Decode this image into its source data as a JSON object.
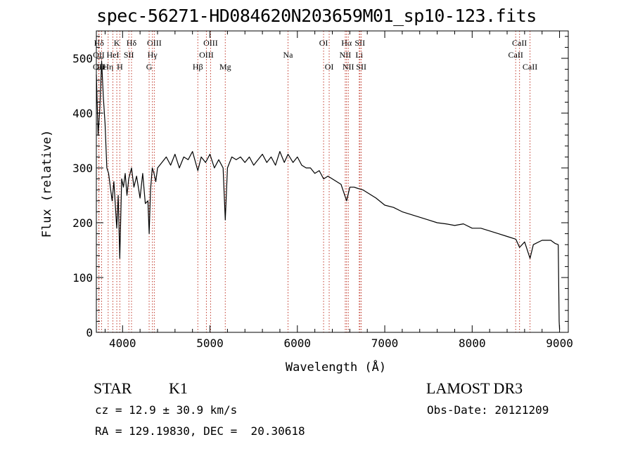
{
  "chart_data": {
    "type": "line",
    "title": "spec-56271-HD084620N203659M01_sp10-123.fits",
    "xlabel": "Wavelength (Å)",
    "ylabel": "Flux (relative)",
    "xlim": [
      3700,
      9100
    ],
    "ylim": [
      0,
      550
    ],
    "xticks": [
      4000,
      5000,
      6000,
      7000,
      8000,
      9000
    ],
    "xtick_labels": [
      "4000",
      "5000",
      "6000",
      "7000",
      "8000",
      "9000"
    ],
    "yticks": [
      0,
      100,
      200,
      300,
      400,
      500
    ],
    "ytick_labels": [
      "0",
      "100",
      "200",
      "300",
      "400",
      "500"
    ],
    "series": [
      {
        "name": "spectrum",
        "x": [
          3700,
          3720,
          3740,
          3760,
          3780,
          3800,
          3820,
          3840,
          3860,
          3880,
          3900,
          3920,
          3933,
          3950,
          3968,
          3990,
          4010,
          4030,
          4050,
          4070,
          4102,
          4130,
          4160,
          4200,
          4230,
          4260,
          4290,
          4304,
          4320,
          4340,
          4360,
          4380,
          4400,
          4450,
          4500,
          4550,
          4600,
          4650,
          4700,
          4750,
          4800,
          4861,
          4900,
          4950,
          5000,
          5050,
          5100,
          5150,
          5175,
          5200,
          5250,
          5300,
          5350,
          5400,
          5450,
          5500,
          5550,
          5600,
          5650,
          5700,
          5750,
          5800,
          5850,
          5893,
          5950,
          6000,
          6050,
          6100,
          6150,
          6200,
          6250,
          6300,
          6350,
          6400,
          6450,
          6500,
          6563,
          6600,
          6650,
          6700,
          6750,
          6800,
          6900,
          7000,
          7100,
          7200,
          7300,
          7400,
          7500,
          7600,
          7700,
          7800,
          7900,
          8000,
          8100,
          8200,
          8300,
          8400,
          8500,
          8542,
          8600,
          8662,
          8700,
          8800,
          8900,
          8950,
          8985,
          8995,
          9000
        ],
        "y": [
          470,
          360,
          410,
          495,
          430,
          380,
          300,
          290,
          265,
          240,
          275,
          225,
          190,
          250,
          135,
          280,
          265,
          290,
          250,
          280,
          300,
          265,
          285,
          245,
          290,
          235,
          240,
          180,
          260,
          300,
          290,
          275,
          300,
          310,
          320,
          305,
          325,
          300,
          320,
          315,
          330,
          295,
          320,
          310,
          325,
          300,
          315,
          300,
          205,
          300,
          320,
          315,
          320,
          310,
          320,
          305,
          315,
          325,
          310,
          320,
          305,
          330,
          310,
          325,
          310,
          320,
          305,
          300,
          300,
          290,
          295,
          280,
          285,
          280,
          275,
          270,
          240,
          265,
          265,
          262,
          260,
          255,
          245,
          232,
          228,
          220,
          215,
          210,
          205,
          200,
          198,
          195,
          198,
          190,
          190,
          185,
          180,
          175,
          170,
          155,
          165,
          135,
          160,
          168,
          168,
          162,
          160,
          20,
          5
        ]
      }
    ],
    "line_markers": [
      {
        "label": "Hδ",
        "x": 3730,
        "row": 0
      },
      {
        "label": "OII",
        "x": 3728,
        "row": 1
      },
      {
        "label": "OII",
        "x": 3727,
        "row": 2
      },
      {
        "label": "Hε",
        "x": 3760,
        "row": 2
      },
      {
        "label": "Hη",
        "x": 3835,
        "row": 2
      },
      {
        "label": "K",
        "x": 3934,
        "row": 0
      },
      {
        "label": "HeI",
        "x": 3889,
        "row": 1
      },
      {
        "label": "H",
        "x": 3969,
        "row": 2
      },
      {
        "label": "Hδ",
        "x": 4102,
        "row": 0
      },
      {
        "label": "SII",
        "x": 4072,
        "row": 1
      },
      {
        "label": "OIII",
        "x": 4363,
        "row": 0
      },
      {
        "label": "Hγ",
        "x": 4341,
        "row": 1
      },
      {
        "label": "G",
        "x": 4304,
        "row": 2
      },
      {
        "label": "Hβ",
        "x": 4861,
        "row": 2
      },
      {
        "label": "OIII",
        "x": 5007,
        "row": 0
      },
      {
        "label": "OIII",
        "x": 4959,
        "row": 1
      },
      {
        "label": "Mg",
        "x": 5175,
        "row": 2
      },
      {
        "label": "Na",
        "x": 5893,
        "row": 1
      },
      {
        "label": "OI",
        "x": 6300,
        "row": 0
      },
      {
        "label": "OI",
        "x": 6364,
        "row": 2
      },
      {
        "label": "Hα",
        "x": 6563,
        "row": 0
      },
      {
        "label": "NII",
        "x": 6548,
        "row": 1
      },
      {
        "label": "NII",
        "x": 6583,
        "row": 2
      },
      {
        "label": "SII",
        "x": 6716,
        "row": 0
      },
      {
        "label": "Li",
        "x": 6708,
        "row": 1
      },
      {
        "label": "SII",
        "x": 6731,
        "row": 2
      },
      {
        "label": "CaII",
        "x": 8542,
        "row": 0
      },
      {
        "label": "CaII",
        "x": 8498,
        "row": 1
      },
      {
        "label": "CaII",
        "x": 8662,
        "row": 2
      }
    ]
  },
  "info": {
    "class_label": "STAR",
    "subclass_label": "K1",
    "survey_label": "LAMOST DR3",
    "redshift_text": "cz = 12.9 ± 30.9 km/s",
    "obs_date_text": "Obs-Date: 20121209",
    "coords_text": "RA = 129.19830, DEC =  20.30618"
  }
}
